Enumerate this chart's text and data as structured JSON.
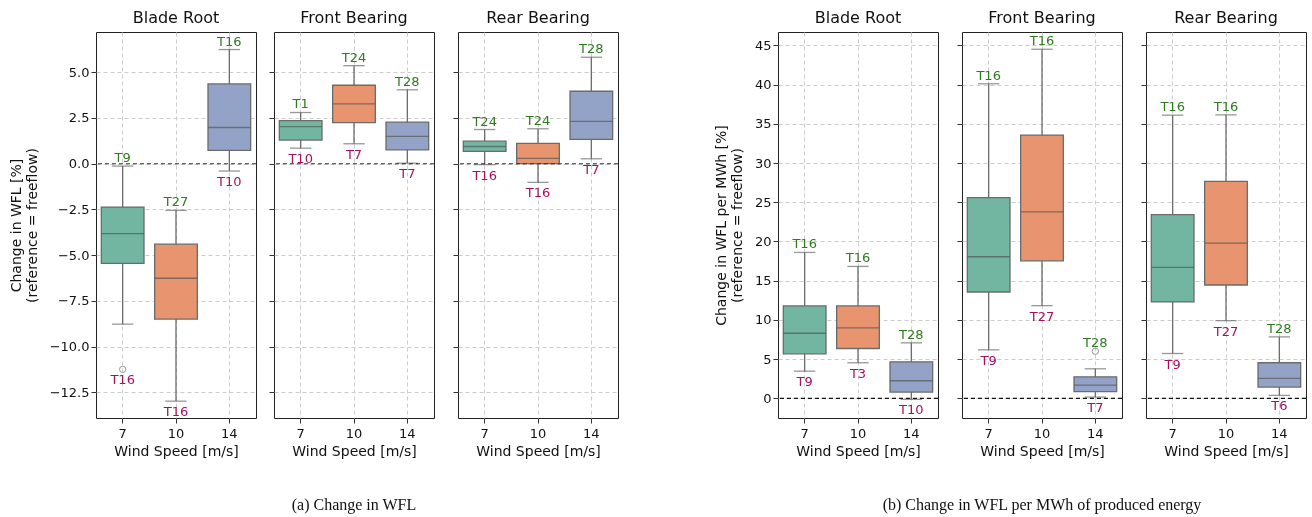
{
  "chart_data": [
    {
      "type": "box",
      "title": "Blade Root",
      "xlabel": "Wind Speed [m/s]",
      "ylabel": "Change in WFL [%]\n(reference = freeflow)",
      "categories": [
        "7",
        "10",
        "14"
      ],
      "colors": [
        "#72b6a1",
        "#e8956f",
        "#93a3c8"
      ],
      "boxes": [
        {
          "low": -8.77,
          "q1": -5.45,
          "median": -3.82,
          "q3": -2.37,
          "high": -0.13,
          "outliers": [
            -11.24
          ]
        },
        {
          "low": -12.98,
          "q1": -8.49,
          "median": -6.26,
          "q3": -4.4,
          "high": -2.55
        },
        {
          "low": -0.4,
          "q1": 0.73,
          "median": 1.98,
          "q3": 4.36,
          "high": 6.24
        }
      ],
      "ylim": [
        -13.9,
        7.2
      ],
      "yticks": [
        {
          "value": -12.5,
          "label": "−12.5"
        },
        {
          "value": -10,
          "label": "−10.0"
        },
        {
          "value": -7.5,
          "label": "−7.5"
        },
        {
          "value": -5,
          "label": "−5.0"
        },
        {
          "value": -2.5,
          "label": "−2.5"
        },
        {
          "value": 0,
          "label": "0.0"
        },
        {
          "value": 2.5,
          "label": "2.5"
        },
        {
          "value": 5,
          "label": "5.0"
        }
      ],
      "grid": true,
      "ref_lines": [
        {
          "axis": "y",
          "value": 0,
          "color": "#333333",
          "line_style": "dashed"
        }
      ],
      "annotations": [
        {
          "text": "T9",
          "x": "7",
          "y": -0.13
        },
        "T16",
        {
          "text": "T27",
          "x": "10",
          "y": -2.55
        },
        {
          "text": "T16",
          "x": "10",
          "y": -12.98
        },
        {
          "text": "T16",
          "x": "14",
          "y": 6.24
        },
        {
          "text": "T10",
          "x": "14",
          "y": -0.4
        }
      ]
    },
    {
      "type": "box",
      "title": "Front Bearing",
      "xlabel": "Wind Speed [m/s]",
      "categories": [
        "7",
        "10",
        "14"
      ],
      "colors": [
        "#72b6a1",
        "#e8956f",
        "#93a3c8"
      ],
      "boxes": [
        {
          "low": 0.85,
          "q1": 1.29,
          "median": 2.03,
          "q3": 2.36,
          "high": 2.8
        },
        {
          "low": 1.09,
          "q1": 2.25,
          "median": 3.27,
          "q3": 4.29,
          "high": 5.36
        },
        {
          "low": 0.03,
          "q1": 0.76,
          "median": 1.49,
          "q3": 2.27,
          "high": 4.04
        }
      ],
      "ylim": [
        -13.9,
        7.2
      ],
      "yticks": [
        {
          "value": -12.5,
          "label": null
        },
        {
          "value": -10,
          "label": null
        },
        {
          "value": -7.5,
          "label": null
        },
        {
          "value": -5,
          "label": null
        },
        {
          "value": -2.5,
          "label": null
        },
        {
          "value": 0,
          "label": null
        },
        {
          "value": 2.5,
          "label": null
        },
        {
          "value": 5,
          "label": null
        }
      ],
      "tick_labels": "x",
      "grid": true,
      "ref_lines": [
        {
          "axis": "y",
          "value": 0,
          "color": "#333333",
          "line_style": "dashed"
        }
      ],
      "annotations": [
        {
          "text": "T1",
          "x": "7",
          "y": 2.8
        },
        {
          "text": "T10",
          "x": "7",
          "y": 0.85
        },
        {
          "text": "T24",
          "x": "10",
          "y": 5.36
        },
        {
          "text": "T7",
          "x": "10",
          "y": 1.09
        },
        {
          "text": "T28",
          "x": "14",
          "y": 4.04
        },
        {
          "text": "T7",
          "x": "14",
          "y": 0.03
        },
        "(a) Change in WFL"
      ]
    },
    {
      "type": "box",
      "title": "Rear Bearing",
      "xlabel": "Wind Speed [m/s]",
      "categories": [
        "7",
        "10",
        "14"
      ],
      "colors": [
        "#72b6a1",
        "#e8956f",
        "#93a3c8"
      ],
      "boxes": [
        {
          "low": -0.05,
          "q1": 0.67,
          "median": 0.94,
          "q3": 1.23,
          "high": 1.87
        },
        {
          "low": -1.02,
          "q1": 0.0,
          "median": 0.29,
          "q3": 1.11,
          "high": 1.91
        },
        {
          "low": 0.27,
          "q1": 1.33,
          "median": 2.31,
          "q3": 3.96,
          "high": 5.82
        }
      ],
      "ylim": [
        -13.9,
        7.2
      ],
      "yticks": [
        {
          "value": -12.5,
          "label": null
        },
        {
          "value": -10,
          "label": null
        },
        {
          "value": -7.5,
          "label": null
        },
        {
          "value": -5,
          "label": null
        },
        {
          "value": -2.5,
          "label": null
        },
        {
          "value": 0,
          "label": null
        },
        {
          "value": 2.5,
          "label": null
        },
        {
          "value": 5,
          "label": null
        }
      ],
      "tick_labels": "x",
      "grid": true,
      "ref_lines": [
        {
          "axis": "y",
          "value": 0,
          "color": "#333333",
          "line_style": "dashed"
        }
      ],
      "annotations": [
        {
          "text": "T24",
          "x": "7",
          "y": 1.87
        },
        {
          "text": "T16",
          "x": "7",
          "y": -0.05
        },
        {
          "text": "T24",
          "x": "10",
          "y": 1.91
        },
        {
          "text": "T16",
          "x": "10",
          "y": -1.02
        },
        {
          "text": "T28",
          "x": "14",
          "y": 5.82
        },
        {
          "text": "T7",
          "x": "14",
          "y": 0.27
        }
      ]
    },
    {
      "type": "box",
      "title": "Blade Root",
      "xlabel": "Wind Speed [m/s]",
      "ylabel": "Change in WFL per MWh [%]\n(reference = freeflow)",
      "categories": [
        "7",
        "10",
        "14"
      ],
      "colors": [
        "#72b6a1",
        "#e8956f",
        "#93a3c8"
      ],
      "boxes": [
        {
          "low": 3.47,
          "q1": 5.68,
          "median": 8.3,
          "q3": 11.78,
          "high": 18.6
        },
        {
          "low": 4.54,
          "q1": 6.36,
          "median": 8.98,
          "q3": 11.78,
          "high": 16.82
        },
        {
          "low": -0.13,
          "q1": 0.81,
          "median": 2.25,
          "q3": 4.66,
          "high": 7.08
        }
      ],
      "ylim": [
        -2.5,
        46.7
      ],
      "yticks": [
        0,
        5,
        10,
        15,
        20,
        25,
        30,
        35,
        40,
        45
      ],
      "grid": true,
      "ref_lines": [
        {
          "axis": "y",
          "value": 0,
          "color": "#111111",
          "line_style": "dashed"
        }
      ],
      "annotations": [
        {
          "text": "T16",
          "x": "7",
          "y": 18.6
        },
        {
          "text": "T9",
          "x": "7",
          "y": 3.47
        },
        {
          "text": "T16",
          "x": "10",
          "y": 16.82
        },
        {
          "text": "T3",
          "x": "10",
          "y": 4.54
        },
        {
          "text": "T28",
          "x": "14",
          "y": 7.08
        },
        {
          "text": "T10",
          "x": "14",
          "y": -0.13
        }
      ]
    },
    {
      "type": "box",
      "title": "Front Bearing",
      "xlabel": "Wind Speed [m/s]",
      "categories": [
        "7",
        "10",
        "14"
      ],
      "colors": [
        "#72b6a1",
        "#e8956f",
        "#93a3c8"
      ],
      "boxes": [
        {
          "low": 6.19,
          "q1": 13.56,
          "median": 18.05,
          "q3": 25.6,
          "high": 40.1
        },
        {
          "low": 11.82,
          "q1": 17.54,
          "median": 23.77,
          "q3": 33.56,
          "high": 44.5
        },
        {
          "low": 0.17,
          "q1": 0.85,
          "median": 1.69,
          "q3": 2.75,
          "high": 3.77,
          "outliers": [
            6.01
          ]
        }
      ],
      "ylim": [
        -2.5,
        46.7
      ],
      "yticks": [
        {
          "value": 0,
          "label": null
        },
        {
          "value": 5,
          "label": null
        },
        {
          "value": 10,
          "label": null
        },
        {
          "value": 15,
          "label": null
        },
        {
          "value": 20,
          "label": null
        },
        {
          "value": 25,
          "label": null
        },
        {
          "value": 30,
          "label": null
        },
        {
          "value": 35,
          "label": null
        },
        {
          "value": 40,
          "label": null
        },
        {
          "value": 45,
          "label": null
        }
      ],
      "tick_labels": "x",
      "grid": true,
      "ref_lines": [
        {
          "axis": "y",
          "value": 0,
          "color": "#111111",
          "line_style": "dashed"
        }
      ],
      "annotations": [
        {
          "text": "T16",
          "x": "7",
          "y": 40.1
        },
        {
          "text": "T9",
          "x": "7",
          "y": 6.19
        },
        {
          "text": "T16",
          "x": "10",
          "y": 44.5
        },
        {
          "text": "T27",
          "x": "10",
          "y": 11.82
        },
        "T28",
        {
          "text": "T7",
          "x": "14",
          "y": 0.17
        },
        "(b) Change in WFL per MWh of produced energy"
      ]
    },
    {
      "type": "box",
      "title": "Rear Bearing",
      "xlabel": "Wind Speed [m/s]",
      "categories": [
        "7",
        "10",
        "14"
      ],
      "colors": [
        "#72b6a1",
        "#e8956f",
        "#93a3c8"
      ],
      "boxes": [
        {
          "low": 5.72,
          "q1": 12.29,
          "median": 16.69,
          "q3": 23.43,
          "high": 36.1
        },
        {
          "low": 9.91,
          "q1": 14.45,
          "median": 19.79,
          "q3": 27.67,
          "high": 36.14
        },
        {
          "low": 0.38,
          "q1": 1.44,
          "median": 2.54,
          "q3": 4.54,
          "high": 7.84
        }
      ],
      "ylim": [
        -2.5,
        46.7
      ],
      "yticks": [
        {
          "value": 0,
          "label": null
        },
        {
          "value": 5,
          "label": null
        },
        {
          "value": 10,
          "label": null
        },
        {
          "value": 15,
          "label": null
        },
        {
          "value": 20,
          "label": null
        },
        {
          "value": 25,
          "label": null
        },
        {
          "value": 30,
          "label": null
        },
        {
          "value": 35,
          "label": null
        },
        {
          "value": 40,
          "label": null
        },
        {
          "value": 45,
          "label": null
        }
      ],
      "tick_labels": "x",
      "grid": true,
      "ref_lines": [
        {
          "axis": "y",
          "value": 0,
          "color": "#111111",
          "line_style": "dashed"
        }
      ],
      "annotations": [
        {
          "text": "T16",
          "x": "7",
          "y": 36.1
        },
        {
          "text": "T9",
          "x": "7",
          "y": 5.72
        },
        {
          "text": "T16",
          "x": "10",
          "y": 36.14
        },
        {
          "text": "T27",
          "x": "10",
          "y": 9.91
        },
        {
          "text": "T28",
          "x": "14",
          "y": 7.84
        },
        {
          "text": "T6",
          "x": "14",
          "y": 0.38
        }
      ]
    }
  ]
}
